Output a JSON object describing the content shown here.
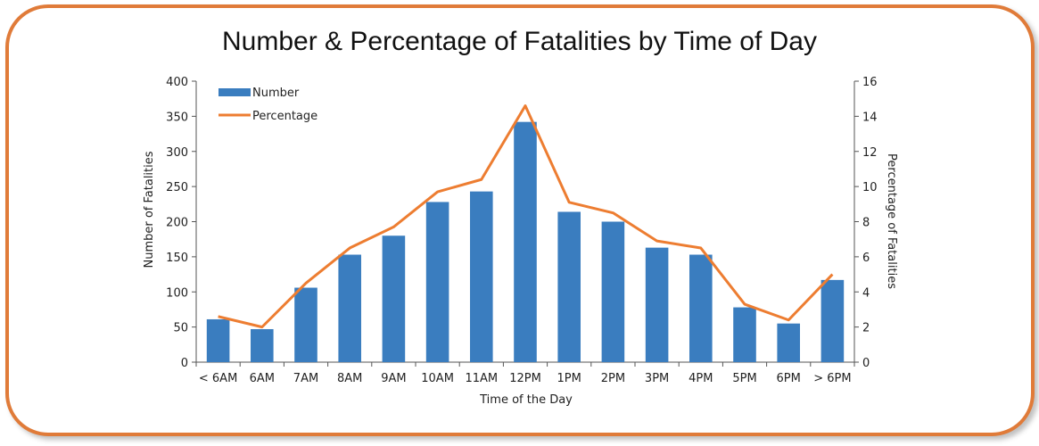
{
  "colors": {
    "bar": "#3a7dbf",
    "line": "#ed7d31",
    "border": "#e07b39"
  },
  "chart_data": {
    "type": "bar",
    "title": "Number & Percentage of Fatalities by Time of Day",
    "xlabel": "Time of the Day",
    "ylabel": "Number of Fatalities",
    "y2label": "Percentage of Fatalities",
    "categories": [
      "< 6AM",
      "6AM",
      "7AM",
      "8AM",
      "9AM",
      "10AM",
      "11AM",
      "12PM",
      "1PM",
      "2PM",
      "3PM",
      "4PM",
      "5PM",
      "6PM",
      "> 6PM"
    ],
    "series": [
      {
        "name": "Number",
        "type": "bar",
        "axis": "left",
        "values": [
          61,
          47,
          106,
          153,
          180,
          228,
          243,
          342,
          214,
          200,
          163,
          153,
          78,
          55,
          117
        ]
      },
      {
        "name": "Percentage",
        "type": "line",
        "axis": "right",
        "values": [
          2.6,
          2.0,
          4.5,
          6.5,
          7.7,
          9.7,
          10.4,
          14.6,
          9.1,
          8.5,
          6.9,
          6.5,
          3.3,
          2.4,
          5.0
        ]
      }
    ],
    "ylim": [
      0,
      400
    ],
    "yticks": [
      0,
      50,
      100,
      150,
      200,
      250,
      300,
      350,
      400
    ],
    "y2lim": [
      0,
      16
    ],
    "y2ticks": [
      0,
      2,
      4,
      6,
      8,
      10,
      12,
      14,
      16
    ],
    "legend": "top-left",
    "grid": false
  }
}
